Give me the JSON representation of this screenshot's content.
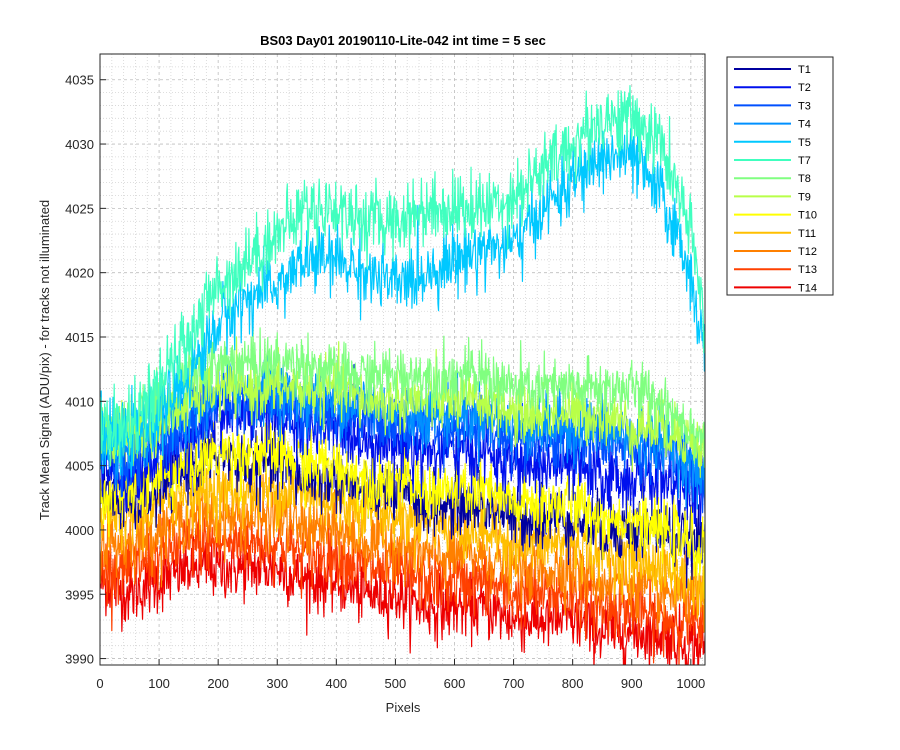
{
  "chart_data": {
    "type": "line",
    "title": "BS03 Day01 20190110-Lite-042 int time = 5 sec",
    "xlabel": "Pixels",
    "ylabel": "Track Mean Signal (ADU/pix) - for tracks not illuminated",
    "xlim": [
      0,
      1024
    ],
    "ylim": [
      3989.5,
      4037
    ],
    "xticks": [
      0,
      100,
      200,
      300,
      400,
      500,
      600,
      700,
      800,
      900,
      1000
    ],
    "yticks": [
      3990,
      3995,
      4000,
      4005,
      4010,
      4015,
      4020,
      4025,
      4030,
      4035
    ],
    "grid": "on (major dashed, minor dotted)",
    "legend_location": "outside right",
    "trend_x": [
      0,
      50,
      100,
      150,
      200,
      250,
      300,
      350,
      400,
      450,
      500,
      550,
      600,
      650,
      700,
      750,
      800,
      850,
      900,
      950,
      1000,
      1024
    ],
    "series": [
      {
        "name": "T1",
        "color": "#00009f",
        "noise": 1.6,
        "values": [
          4003,
          4002,
          4003,
          4005,
          4006,
          4005,
          4005,
          4004,
          4004,
          4003,
          4003,
          4002,
          4002,
          4002,
          4001,
          4001,
          4001,
          4000,
          4000,
          4000,
          3999,
          3999
        ]
      },
      {
        "name": "T2",
        "color": "#0010ee",
        "noise": 1.7,
        "values": [
          4005,
          4004,
          4006,
          4007,
          4009,
          4009,
          4009,
          4008,
          4008,
          4007,
          4007,
          4006,
          4006,
          4006,
          4005,
          4005,
          4005,
          4004,
          4004,
          4004,
          4003,
          4003
        ]
      },
      {
        "name": "T3",
        "color": "#0050ff",
        "noise": 1.6,
        "values": [
          4006,
          4005,
          4007,
          4008,
          4010,
          4010,
          4010,
          4009,
          4009,
          4009,
          4008,
          4008,
          4008,
          4008,
          4007,
          4007,
          4007,
          4007,
          4006,
          4006,
          4005,
          4004
        ]
      },
      {
        "name": "T4",
        "color": "#0090ff",
        "noise": 1.6,
        "values": [
          4006,
          4006,
          4008,
          4009,
          4011,
          4011,
          4011,
          4010,
          4010,
          4010,
          4009,
          4009,
          4009,
          4009,
          4008,
          4008,
          4008,
          4008,
          4007,
          4007,
          4005,
          4004
        ]
      },
      {
        "name": "T5",
        "color": "#00c8ff",
        "noise": 1.7,
        "values": [
          4007,
          4007,
          4009,
          4012,
          4016,
          4018,
          4019,
          4021,
          4021,
          4020,
          4019,
          4020,
          4021,
          4022,
          4022,
          4025,
          4027,
          4029,
          4029,
          4026,
          4020,
          4013
        ]
      },
      {
        "name": "T7",
        "color": "#40ffbf",
        "noise": 1.8,
        "values": [
          4008,
          4008,
          4011,
          4015,
          4019,
          4021,
          4023,
          4025,
          4025,
          4024,
          4024,
          4025,
          4025,
          4025,
          4026,
          4028,
          4030,
          4032,
          4032,
          4030,
          4023,
          4016
        ]
      },
      {
        "name": "T8",
        "color": "#80ff80",
        "noise": 1.5,
        "values": [
          4008,
          4008,
          4010,
          4012,
          4013,
          4013,
          4013,
          4013,
          4012,
          4012,
          4012,
          4012,
          4012,
          4012,
          4011,
          4011,
          4011,
          4011,
          4011,
          4010,
          4008,
          4007
        ]
      },
      {
        "name": "T9",
        "color": "#b8ff48",
        "noise": 1.5,
        "values": [
          4007,
          4007,
          4008,
          4010,
          4011,
          4011,
          4011,
          4011,
          4011,
          4010,
          4010,
          4010,
          4010,
          4010,
          4009,
          4009,
          4009,
          4009,
          4008,
          4008,
          4007,
          4006
        ]
      },
      {
        "name": "T10",
        "color": "#ffff00",
        "noise": 1.6,
        "values": [
          4003,
          4003,
          4004,
          4005,
          4006,
          4006,
          4006,
          4005,
          4005,
          4004,
          4004,
          4003,
          4003,
          4003,
          4002,
          4002,
          4002,
          4001,
          4001,
          4000,
          3999,
          3998
        ]
      },
      {
        "name": "T11",
        "color": "#ffbf00",
        "noise": 1.6,
        "values": [
          4001,
          4001,
          4002,
          4003,
          4003,
          4003,
          4003,
          4003,
          4002,
          4002,
          4001,
          4001,
          4000,
          4000,
          3999,
          3999,
          3999,
          3998,
          3998,
          3997,
          3996,
          3995
        ]
      },
      {
        "name": "T12",
        "color": "#ff8000",
        "noise": 1.6,
        "values": [
          3999,
          3999,
          4000,
          4001,
          4001,
          4001,
          4001,
          4000,
          4000,
          3999,
          3999,
          3998,
          3998,
          3998,
          3997,
          3997,
          3997,
          3996,
          3996,
          3995,
          3995,
          3994
        ]
      },
      {
        "name": "T13",
        "color": "#ff4000",
        "noise": 1.6,
        "values": [
          3997,
          3997,
          3998,
          3999,
          3999,
          3999,
          3999,
          3998,
          3998,
          3997,
          3997,
          3996,
          3996,
          3996,
          3995,
          3995,
          3995,
          3994,
          3994,
          3993,
          3993,
          3992
        ]
      },
      {
        "name": "T14",
        "color": "#ee0000",
        "noise": 1.6,
        "values": [
          3996,
          3995,
          3996,
          3997,
          3997,
          3997,
          3997,
          3996,
          3996,
          3995,
          3995,
          3994,
          3994,
          3994,
          3993,
          3993,
          3993,
          3992,
          3992,
          3992,
          3991,
          3991
        ]
      }
    ]
  }
}
